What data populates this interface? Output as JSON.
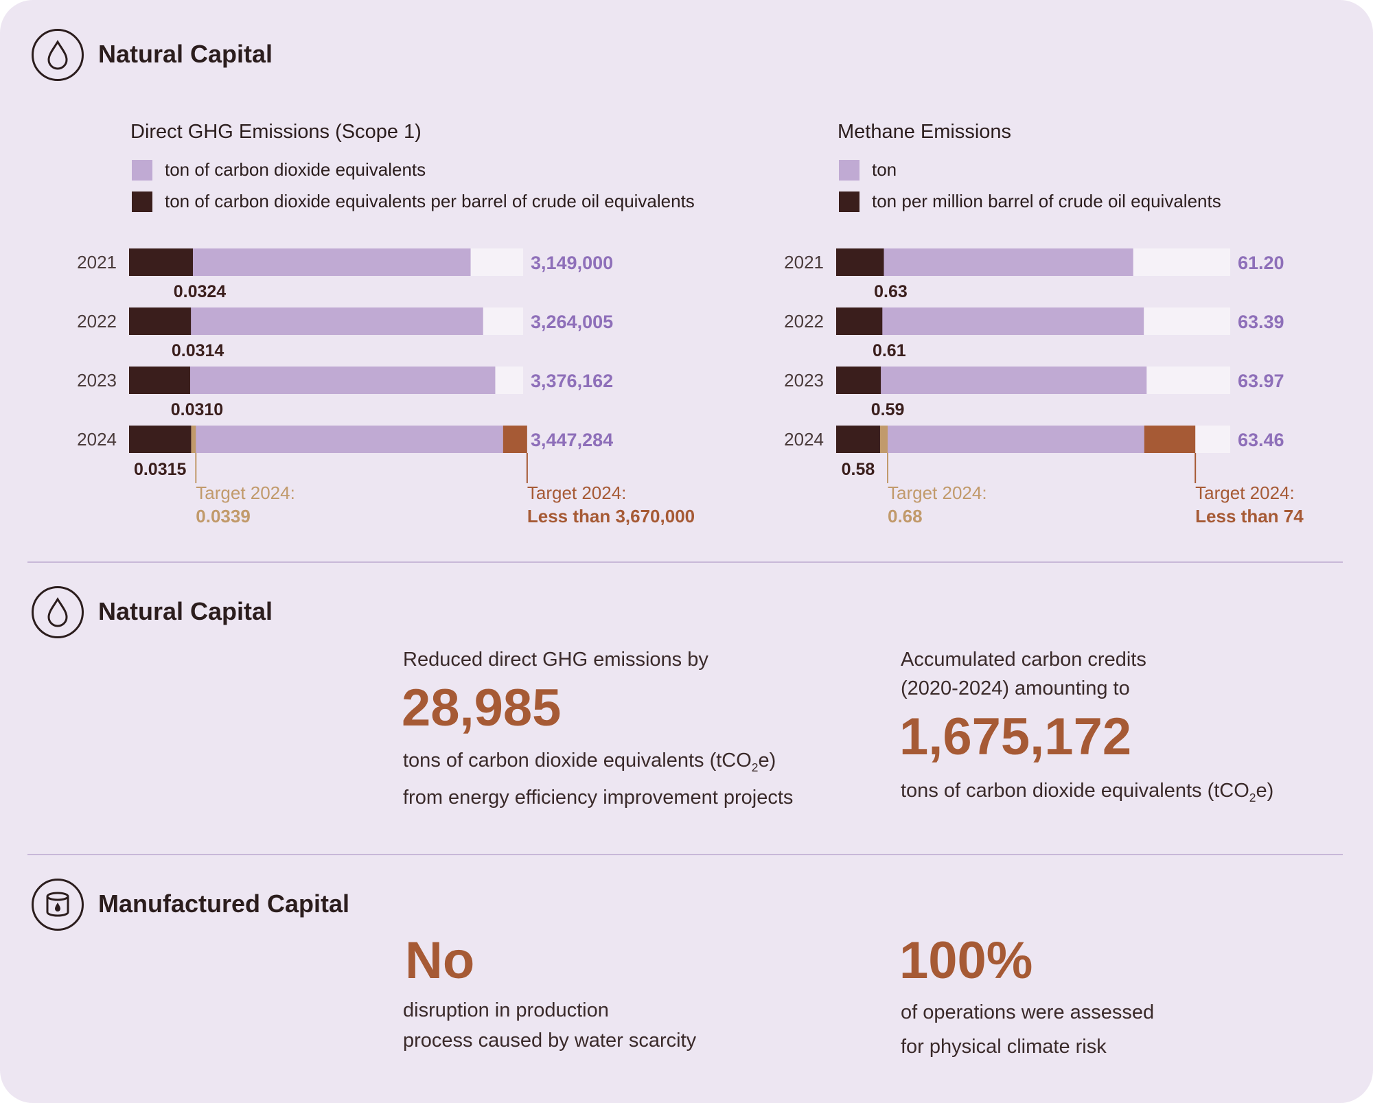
{
  "colors": {
    "purple": "#c0aad3",
    "dark": "#3a1e1c",
    "track": "#f6f2f8",
    "tan": "#c19a6b",
    "rust": "#a65a35",
    "value_text": "#8e6fb9"
  },
  "section1": {
    "title": "Natural Capital",
    "icon": "water-drop-icon"
  },
  "section2": {
    "title": "Natural Capital",
    "icon": "water-drop-icon"
  },
  "section3": {
    "title": "Manufactured Capital",
    "icon": "oil-barrel-icon"
  },
  "chart_data": [
    {
      "type": "bar",
      "title": "Direct GHG Emissions (Scope 1)",
      "legend": [
        "ton of carbon dioxide equivalents",
        "ton of carbon dioxide equivalents per barrel of crude oil equivalents"
      ],
      "categories": [
        "2021",
        "2022",
        "2023",
        "2024"
      ],
      "series": [
        {
          "name": "ton of carbon dioxide equivalents",
          "values": [
            3149000,
            3264005,
            3376162,
            3447284
          ],
          "labels": [
            "3,149,000",
            "3,264,005",
            "3,376,162",
            "3,447,284"
          ]
        },
        {
          "name": "ton of carbon dioxide equivalents per barrel of crude oil equivalents",
          "values": [
            0.0324,
            0.0314,
            0.031,
            0.0315
          ],
          "labels": [
            "0.0324",
            "0.0314",
            "0.0310",
            "0.0315"
          ]
        }
      ],
      "targets": [
        {
          "label": "Target 2024:",
          "value_text": "0.0339",
          "value": 0.0339
        },
        {
          "label": "Target 2024:",
          "value_text": "Less than 3,670,000",
          "value": 3670000
        }
      ]
    },
    {
      "type": "bar",
      "title": "Methane Emissions",
      "legend": [
        "ton",
        "ton per million barrel of crude oil equivalents"
      ],
      "categories": [
        "2021",
        "2022",
        "2023",
        "2024"
      ],
      "series": [
        {
          "name": "ton",
          "values": [
            61.2,
            63.39,
            63.97,
            63.46
          ],
          "labels": [
            "61.20",
            "63.39",
            "63.97",
            "63.46"
          ]
        },
        {
          "name": "ton per million barrel of crude oil equivalents",
          "values": [
            0.63,
            0.61,
            0.59,
            0.58
          ],
          "labels": [
            "0.63",
            "0.61",
            "0.59",
            "0.58"
          ]
        }
      ],
      "targets": [
        {
          "label": "Target 2024:",
          "value_text": "0.68",
          "value": 0.68
        },
        {
          "label": "Target 2024:",
          "value_text": "Less than 74",
          "value": 74
        }
      ]
    }
  ],
  "highlights": {
    "ghg_reduction": {
      "intro": "Reduced direct GHG emissions by",
      "value": "28,985",
      "desc_line1_pre": "tons of carbon dioxide equivalents (tCO",
      "desc_line1_sub": "2",
      "desc_line1_post": "e)",
      "desc_line2": "from energy efficiency improvement projects"
    },
    "carbon_credits": {
      "intro_line1": "Accumulated carbon credits",
      "intro_line2": "(2020-2024) amounting to",
      "value": "1,675,172",
      "desc_pre": "tons of carbon dioxide equivalents  (tCO",
      "desc_sub": "2",
      "desc_post": "e)"
    },
    "water": {
      "value": "No",
      "desc_line1": "disruption in production",
      "desc_line2": "process caused by water scarcity"
    },
    "climate_risk": {
      "value": "100%",
      "desc_line1": "of operations were assessed",
      "desc_line2": "for physical climate risk"
    }
  }
}
